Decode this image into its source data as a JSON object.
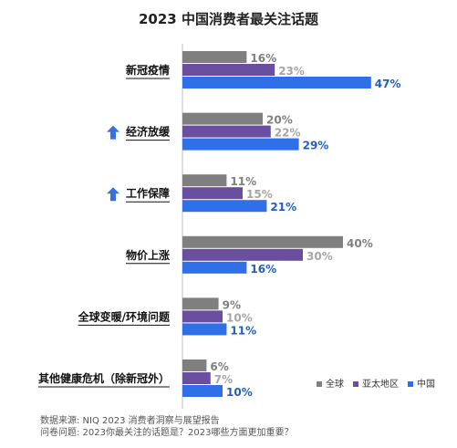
{
  "chart_data": {
    "type": "bar",
    "orientation": "horizontal",
    "title": "2023 中国消费者最关注话题",
    "categories": [
      "新冠疫情",
      "经济放缓",
      "工作保障",
      "物价上涨",
      "全球变暖/环境问题",
      "其他健康危机（除新冠外）"
    ],
    "series": [
      {
        "name": "全球",
        "values": [
          16,
          20,
          11,
          40,
          9,
          6
        ],
        "color": "#7f7f7f",
        "label_color": "#7f7f7f"
      },
      {
        "name": "亚太地区",
        "values": [
          23,
          22,
          15,
          30,
          10,
          7
        ],
        "color": "#6a4fa0",
        "label_color": "#a6a6a6"
      },
      {
        "name": "中国",
        "values": [
          47,
          29,
          21,
          16,
          11,
          10
        ],
        "color": "#2f6fe8",
        "label_color": "#1f5fbf"
      }
    ],
    "value_suffix": "%",
    "arrow_categories": [
      1,
      2
    ],
    "arrow_color": "#3a6fe0",
    "legend_position": "bottom-right",
    "grid": false
  },
  "footer": {
    "source": "数据来源: NIQ 2023 消费者洞察与展望报告",
    "question": "问卷问题: 2023你最关注的话题是？2023哪些方面更加重要？"
  }
}
